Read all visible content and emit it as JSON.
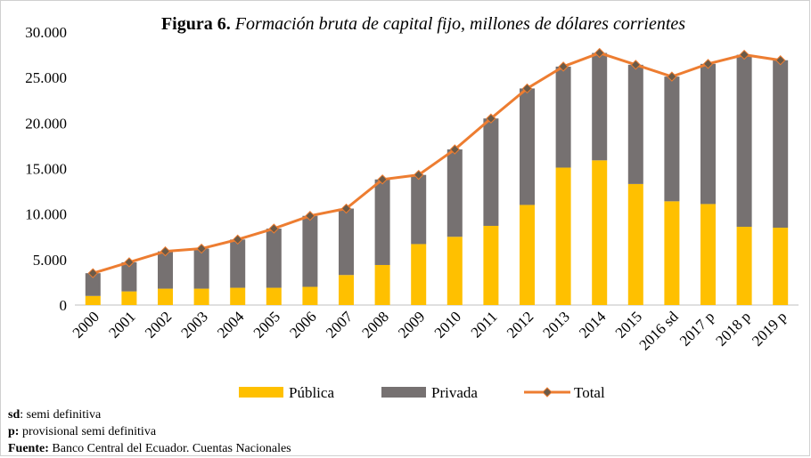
{
  "chart_data": {
    "type": "stacked_bar_line",
    "title_label": "Figura 6.",
    "title": "Formación bruta de capital fijo, millones de dólares corrientes",
    "categories": [
      "2000",
      "2001",
      "2002",
      "2003",
      "2004",
      "2005",
      "2006",
      "2007",
      "2008",
      "2009",
      "2010",
      "2011",
      "2012",
      "2013",
      "2014",
      "2015",
      "2016 sd",
      "2017 p",
      "2018 p",
      "2019 p"
    ],
    "series": [
      {
        "name": "Pública",
        "color": "#FFC000",
        "values": [
          1000,
          1500,
          1800,
          1800,
          1900,
          1900,
          2000,
          3300,
          4400,
          6700,
          7500,
          8700,
          11000,
          15100,
          15900,
          13300,
          11400,
          11100,
          8600,
          8500
        ]
      },
      {
        "name": "Privada",
        "color": "#767171",
        "values": [
          2500,
          3200,
          4100,
          4400,
          5300,
          6500,
          7800,
          7300,
          9400,
          7600,
          9600,
          11800,
          12800,
          11100,
          11800,
          13100,
          13700,
          15400,
          18900,
          18400
        ]
      },
      {
        "name": "Total",
        "color": "#ED7D31",
        "marker_color": "#6B5A48",
        "values": [
          3500,
          4700,
          5900,
          6200,
          7200,
          8400,
          9800,
          10600,
          13800,
          14300,
          17100,
          20500,
          23800,
          26200,
          27700,
          26400,
          25100,
          26500,
          27500,
          26900
        ]
      }
    ],
    "ylim": [
      0,
      30000
    ],
    "yticks": [
      0,
      {
        "value": 5000,
        "label": "5.000"
      },
      {
        "value": 10000,
        "label": "10.000"
      },
      {
        "value": 15000,
        "label": "15.000"
      },
      {
        "value": 20000,
        "label": "20.000"
      },
      {
        "value": 25000,
        "label": "25.000"
      },
      {
        "value": 30000,
        "label": "30.000"
      }
    ],
    "notes": [
      {
        "term": "sd",
        "text": ": semi definitiva"
      },
      {
        "term": "p:",
        "text": " provisional semi definitiva"
      },
      {
        "term": "Fuente:",
        "text": " Banco Central del Ecuador. Cuentas Nacionales"
      }
    ]
  }
}
